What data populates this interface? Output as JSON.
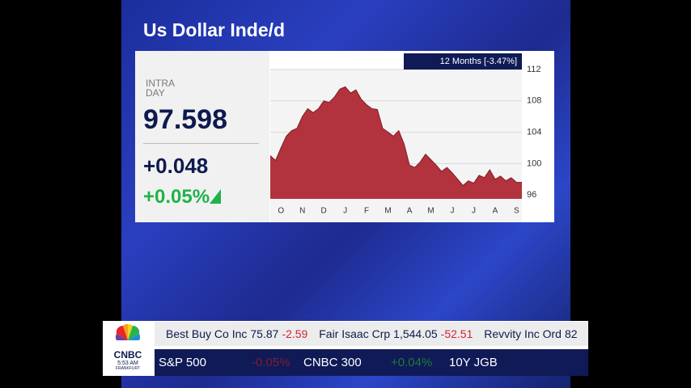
{
  "chart_data": {
    "type": "area",
    "title": "Us Dollar Inde/d",
    "annotation": "12 Months [-3.47%]",
    "categories": [
      null,
      null,
      "O",
      null,
      null,
      null,
      "N",
      null,
      null,
      null,
      "D",
      null,
      null,
      null,
      "J",
      null,
      null,
      null,
      "F",
      null,
      null,
      null,
      "M",
      null,
      null,
      null,
      "A",
      null,
      null,
      null,
      "M",
      null,
      null,
      null,
      "J",
      null,
      null,
      null,
      "J",
      null,
      null,
      null,
      "A",
      null,
      null,
      null,
      "S",
      null
    ],
    "values": [
      101.0,
      100.4,
      102.0,
      103.5,
      104.2,
      104.5,
      106.0,
      107.0,
      106.5,
      107.0,
      108.0,
      107.8,
      108.5,
      109.5,
      109.8,
      109.0,
      109.4,
      108.2,
      107.5,
      107.0,
      106.9,
      104.5,
      104.0,
      103.5,
      104.2,
      102.5,
      99.8,
      99.5,
      100.2,
      101.2,
      100.5,
      99.8,
      99.0,
      99.5,
      98.8,
      98.0,
      97.2,
      97.8,
      97.5,
      98.5,
      98.2,
      99.2,
      98.0,
      98.4,
      97.8,
      98.2,
      97.6,
      97.6
    ],
    "color": "#b2333d",
    "ylim": [
      95.5,
      112
    ],
    "yticks": [
      96,
      100,
      104,
      108,
      112
    ],
    "grid": true
  },
  "quote": {
    "label_1": "INTRA",
    "label_2": "DAY",
    "price": "97.598",
    "change": "+0.048",
    "change_pct": "+0.05%"
  },
  "ticker": {
    "logo": "CNBC",
    "time": "5:53 AM",
    "city": "FRANKFURT",
    "stocks": [
      {
        "name": "Best Buy Co Inc",
        "price": "75.87",
        "change": "-2.59"
      },
      {
        "name": "Fair Isaac Crp",
        "price": "1,544.05",
        "change": "-52.51"
      },
      {
        "name": "Revvity Inc Ord",
        "price": "82"
      }
    ],
    "indices": [
      {
        "name": "S&P 500",
        "change": "-0.05%"
      },
      {
        "name": "CNBC 300",
        "change": "+0.04%"
      },
      {
        "name": "10Y JGB"
      }
    ]
  }
}
